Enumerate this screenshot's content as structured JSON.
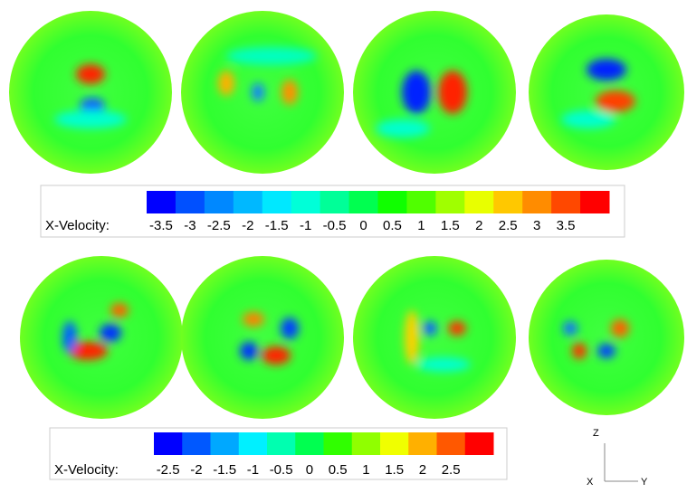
{
  "colorbars": [
    {
      "label": "X-Velocity:",
      "ticks": [
        -3.5,
        -3,
        -2.5,
        -2,
        -1.5,
        -1,
        -0.5,
        0,
        0.5,
        1,
        1.5,
        2,
        2.5,
        3,
        3.5
      ],
      "colors": [
        "#0000ff",
        "#0050ff",
        "#0088ff",
        "#00b8ff",
        "#00e8ff",
        "#00ffd8",
        "#00ff98",
        "#00ff50",
        "#10ff00",
        "#50ff00",
        "#a0ff00",
        "#e8ff00",
        "#ffc800",
        "#ff8c00",
        "#ff4800",
        "#ff0000"
      ]
    },
    {
      "label": "X-Velocity:",
      "ticks": [
        -2.5,
        -2,
        -1.5,
        -1,
        -0.5,
        0,
        0.5,
        1,
        1.5,
        2,
        2.5
      ],
      "colors": [
        "#0000ff",
        "#0058ff",
        "#00a8ff",
        "#00f0ff",
        "#00ffb0",
        "#00ff50",
        "#30ff00",
        "#90ff00",
        "#f0ff00",
        "#ffb000",
        "#ff5800",
        "#ff0000"
      ]
    }
  ],
  "axes": {
    "z": "Z",
    "y": "Y",
    "x": "X"
  }
}
